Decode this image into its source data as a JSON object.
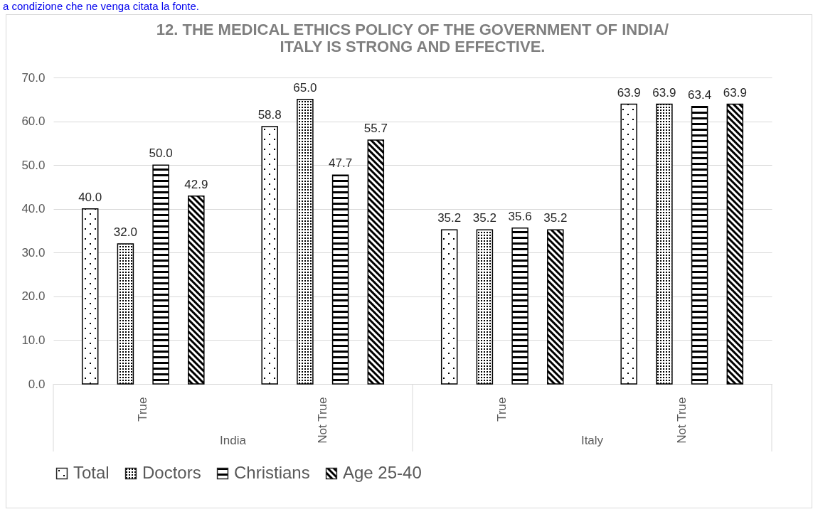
{
  "chart_data": {
    "type": "bar",
    "title": "12. THE MEDICAL ETHICS POLICY OF THE GOVERNMENT OF INDIA/ ITALY IS STRONG AND EFFECTIVE.",
    "categories": [
      "True",
      "Not True",
      "True",
      "Not True"
    ],
    "series": [
      {
        "name": "Total",
        "color": "#000000",
        "values": [
          40.0,
          58.8,
          35.2,
          63.9
        ],
        "value_labels": [
          "40.0",
          "58.8",
          "35.2",
          "63.9"
        ]
      },
      {
        "name": "Doctors",
        "color": "#000000",
        "values": [
          32.0,
          65.0,
          35.2,
          63.9
        ],
        "value_labels": [
          "32.0",
          "65.0",
          "35.2",
          "63.9"
        ]
      },
      {
        "name": "Christians",
        "color": "#000000",
        "values": [
          50.0,
          47.7,
          35.6,
          63.4
        ],
        "value_labels": [
          "50.0",
          "47.7",
          "35.6",
          "63.4"
        ]
      },
      {
        "name": "Age 25-40",
        "color": "#000000",
        "values": [
          42.9,
          55.7,
          35.2,
          63.9
        ],
        "value_labels": [
          "42.9",
          "55.7",
          "35.2",
          "63.9"
        ]
      }
    ],
    "ylim": [
      0,
      70
    ],
    "yticks": [
      {
        "value": 0,
        "label": "0.0"
      },
      {
        "value": 10,
        "label": "10.0"
      },
      {
        "value": 20,
        "label": "20.0"
      },
      {
        "value": 30,
        "label": "30.0"
      },
      {
        "value": 40,
        "label": "40.0"
      },
      {
        "value": 50,
        "label": "50.0"
      },
      {
        "value": 60,
        "label": "60.0"
      },
      {
        "value": 70,
        "label": "70.0"
      }
    ],
    "grid": "y",
    "legend": "bottom",
    "annotations": [
      "a condizione che ne venga citata la fonte.",
      "India",
      "Italy"
    ]
  }
}
